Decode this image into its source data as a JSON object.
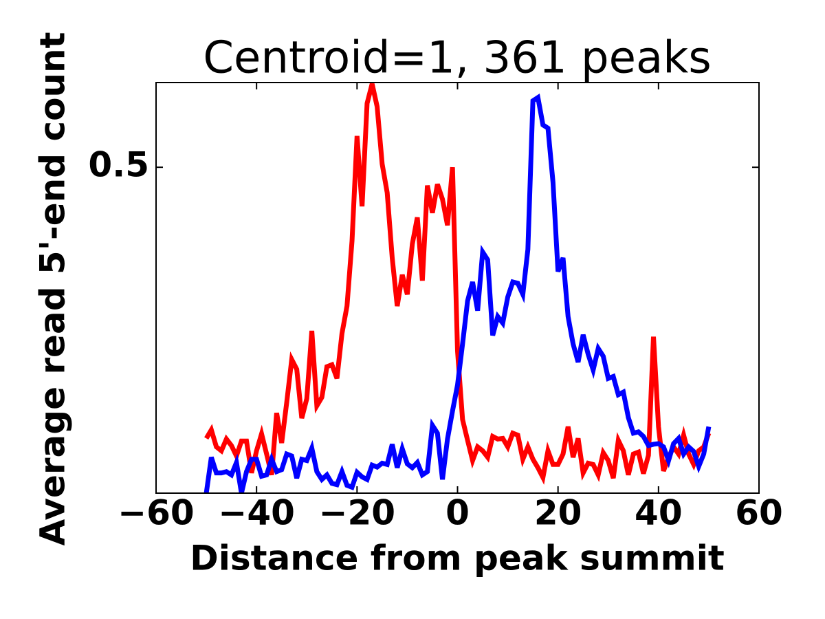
{
  "chart_data": {
    "type": "line",
    "title": "Centroid=1, 361 peaks",
    "xlabel": "Distance from peak summit",
    "ylabel": "Average read 5'-end count",
    "x": [
      -50,
      -49,
      -48,
      -47,
      -46,
      -45,
      -44,
      -43,
      -42,
      -41,
      -40,
      -39,
      -38,
      -37,
      -36,
      -35,
      -34,
      -33,
      -32,
      -31,
      -30,
      -29,
      -28,
      -27,
      -26,
      -25,
      -24,
      -23,
      -22,
      -21,
      -20,
      -19,
      -18,
      -17,
      -16,
      -15,
      -14,
      -13,
      -12,
      -11,
      -10,
      -9,
      -8,
      -7,
      -6,
      -5,
      -4,
      -3,
      -2,
      -1,
      0,
      1,
      2,
      3,
      4,
      5,
      6,
      7,
      8,
      9,
      10,
      11,
      12,
      13,
      14,
      15,
      16,
      17,
      18,
      19,
      20,
      21,
      22,
      23,
      24,
      25,
      26,
      27,
      28,
      29,
      30,
      31,
      32,
      33,
      34,
      35,
      36,
      37,
      38,
      39,
      40,
      41,
      42,
      43,
      44,
      45,
      46,
      47,
      48,
      49,
      50
    ],
    "series": [
      {
        "color": "#ff0000",
        "values": [
          0.084,
          0.097,
          0.071,
          0.065,
          0.083,
          0.073,
          0.057,
          0.08,
          0.08,
          0.031,
          0.065,
          0.091,
          0.06,
          0.028,
          0.123,
          0.077,
          0.139,
          0.205,
          0.19,
          0.115,
          0.145,
          0.249,
          0.134,
          0.147,
          0.194,
          0.197,
          0.176,
          0.245,
          0.287,
          0.387,
          0.548,
          0.44,
          0.598,
          0.628,
          0.593,
          0.505,
          0.461,
          0.361,
          0.287,
          0.335,
          0.305,
          0.382,
          0.423,
          0.326,
          0.472,
          0.43,
          0.474,
          0.451,
          0.411,
          0.5,
          0.218,
          0.113,
          0.081,
          0.05,
          0.071,
          0.065,
          0.055,
          0.087,
          0.083,
          0.084,
          0.071,
          0.092,
          0.089,
          0.052,
          0.071,
          0.052,
          0.039,
          0.024,
          0.065,
          0.044,
          0.044,
          0.06,
          0.102,
          0.055,
          0.084,
          0.031,
          0.046,
          0.044,
          0.028,
          0.062,
          0.05,
          0.023,
          0.081,
          0.065,
          0.028,
          0.06,
          0.063,
          0.03,
          0.058,
          0.24,
          0.102,
          0.034,
          0.055,
          0.071,
          0.06,
          0.089,
          0.06,
          0.044,
          0.065,
          0.071,
          0.092
        ]
      },
      {
        "color": "#0000ff",
        "values": [
          0.0,
          0.055,
          0.031,
          0.031,
          0.033,
          0.028,
          0.047,
          0.0,
          0.033,
          0.052,
          0.052,
          0.026,
          0.028,
          0.052,
          0.033,
          0.036,
          0.06,
          0.057,
          0.023,
          0.052,
          0.05,
          0.069,
          0.033,
          0.021,
          0.028,
          0.015,
          0.013,
          0.033,
          0.012,
          0.009,
          0.032,
          0.025,
          0.021,
          0.043,
          0.04,
          0.046,
          0.044,
          0.075,
          0.039,
          0.068,
          0.045,
          0.039,
          0.047,
          0.028,
          0.033,
          0.104,
          0.092,
          0.021,
          0.083,
          0.126,
          0.166,
          0.229,
          0.295,
          0.324,
          0.28,
          0.37,
          0.358,
          0.242,
          0.271,
          0.261,
          0.301,
          0.324,
          0.322,
          0.305,
          0.374,
          0.602,
          0.607,
          0.565,
          0.56,
          0.477,
          0.34,
          0.361,
          0.271,
          0.229,
          0.201,
          0.243,
          0.213,
          0.189,
          0.222,
          0.21,
          0.176,
          0.179,
          0.151,
          0.155,
          0.116,
          0.092,
          0.094,
          0.087,
          0.073,
          0.075,
          0.076,
          0.071,
          0.05,
          0.076,
          0.084,
          0.06,
          0.071,
          0.064,
          0.041,
          0.06,
          0.102
        ]
      }
    ],
    "xlim": [
      -60,
      60
    ],
    "xticks": [
      {
        "value": -60,
        "label": "−60"
      },
      {
        "value": -40,
        "label": "−40"
      },
      {
        "value": -20,
        "label": "−20"
      },
      0,
      20,
      40,
      60
    ],
    "ylim": [
      0,
      0.63
    ],
    "yticks": [
      0.5
    ],
    "grid": false
  }
}
